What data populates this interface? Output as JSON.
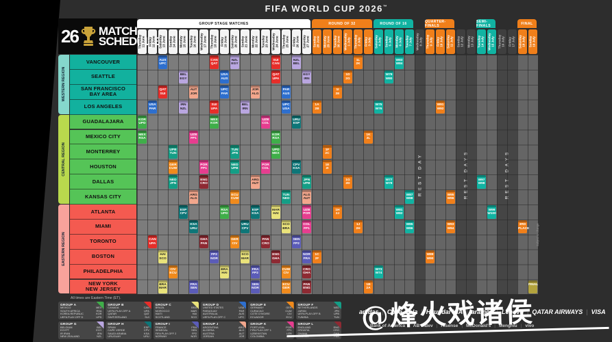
{
  "title": "FIFA WORLD CUP 2026",
  "title_tm": "™",
  "logo": {
    "year": "26",
    "line1": "MATCH",
    "line2": "SCHEDULE",
    "trophy_icon": "fifa-trophy-icon"
  },
  "note": "All times are Eastern Time (ET).",
  "side_note": "Subject to change",
  "watermark": "@烽火戏诸侯",
  "colors": {
    "accent_orange": "#f07f1a",
    "accent_teal": "#11b3a2",
    "final_gold": "#b3a33d",
    "grid_gray": "#7c7c7c",
    "knockout_gray": "#656565",
    "rest_gray": "#454545"
  },
  "regions": [
    {
      "name": "WESTERN REGION",
      "tab_color": "#85d7cc",
      "cell_color": "#12b19e",
      "cities": [
        "VANCOUVER",
        "SEATTLE",
        "SAN FRANCISCO\nBAY AREA",
        "LOS ANGELES"
      ]
    },
    {
      "name": "CENTRAL REGION",
      "tab_color": "#b9d94d",
      "cell_color": "#55c457",
      "cities": [
        "GUADALAJARA",
        "MEXICO CITY",
        "MONTERREY",
        "HOUSTON",
        "DALLAS",
        "KANSAS CITY"
      ]
    },
    {
      "name": "EASTERN REGION",
      "tab_color": "#f8a29b",
      "cell_color": "#f45a50",
      "cities": [
        "ATLANTA",
        "MIAMI",
        "TORONTO",
        "BOSTON",
        "PHILADELPHIA",
        "NEW YORK\nNEW JERSEY"
      ]
    }
  ],
  "schedule": {
    "sections": [
      {
        "label": "GROUP STAGE MATCHES",
        "type": "white",
        "start": 0,
        "end": 16
      },
      {
        "label": "ROUND OF 32",
        "type": "orange",
        "start": 17,
        "end": 22
      },
      {
        "label": "ROUND OF 16",
        "type": "teal",
        "start": 23,
        "end": 26
      },
      {
        "label": "QUARTER-FINALS",
        "type": "orange",
        "start": 28,
        "end": 30
      },
      {
        "label": "SEMI-FINALS",
        "type": "teal",
        "start": 33,
        "end": 34
      },
      {
        "label": "FINAL",
        "type": "orange",
        "start": 37,
        "end": 38
      }
    ],
    "dates": [
      {
        "w": "Thursday",
        "d": "11 June",
        "t": "g"
      },
      {
        "w": "Friday",
        "d": "12 June",
        "t": "g"
      },
      {
        "w": "Saturday",
        "d": "13 June",
        "t": "g"
      },
      {
        "w": "Sunday",
        "d": "14 June",
        "t": "g"
      },
      {
        "w": "Monday",
        "d": "15 June",
        "t": "g"
      },
      {
        "w": "Tuesday",
        "d": "16 June",
        "t": "g"
      },
      {
        "w": "Wednesday",
        "d": "17 June",
        "t": "g"
      },
      {
        "w": "Thursday",
        "d": "18 June",
        "t": "g"
      },
      {
        "w": "Friday",
        "d": "19 June",
        "t": "g"
      },
      {
        "w": "Saturday",
        "d": "20 June",
        "t": "g"
      },
      {
        "w": "Sunday",
        "d": "21 June",
        "t": "g"
      },
      {
        "w": "Monday",
        "d": "22 June",
        "t": "g"
      },
      {
        "w": "Tuesday",
        "d": "23 June",
        "t": "g"
      },
      {
        "w": "Wednesday",
        "d": "24 June",
        "t": "g"
      },
      {
        "w": "Thursday",
        "d": "25 June",
        "t": "g"
      },
      {
        "w": "Friday",
        "d": "26 June",
        "t": "g"
      },
      {
        "w": "Saturday",
        "d": "27 June",
        "t": "g"
      },
      {
        "w": "Sunday",
        "d": "28 June",
        "t": "o"
      },
      {
        "w": "Monday",
        "d": "29 June",
        "t": "o"
      },
      {
        "w": "Tuesday",
        "d": "30 June",
        "t": "o"
      },
      {
        "w": "Wednesday",
        "d": "1 July",
        "t": "o"
      },
      {
        "w": "Thursday",
        "d": "2 July",
        "t": "o"
      },
      {
        "w": "Friday",
        "d": "3 July",
        "t": "o"
      },
      {
        "w": "Saturday",
        "d": "4 July",
        "t": "t"
      },
      {
        "w": "Sunday",
        "d": "5 July",
        "t": "t"
      },
      {
        "w": "Monday",
        "d": "6 July",
        "t": "t"
      },
      {
        "w": "Tuesday",
        "d": "7 July",
        "t": "t"
      },
      {
        "w": "Wednesday",
        "d": "8 July",
        "t": "r"
      },
      {
        "w": "Thursday",
        "d": "9 July",
        "t": "o"
      },
      {
        "w": "Friday",
        "d": "10 July",
        "t": "o"
      },
      {
        "w": "Saturday",
        "d": "11 July",
        "t": "o"
      },
      {
        "w": "Sunday",
        "d": "12 July",
        "t": "r"
      },
      {
        "w": "Monday",
        "d": "13 July",
        "t": "r"
      },
      {
        "w": "Tuesday",
        "d": "14 July",
        "t": "t"
      },
      {
        "w": "Wednesday",
        "d": "15 July",
        "t": "t"
      },
      {
        "w": "Thursday",
        "d": "16 July",
        "t": "r"
      },
      {
        "w": "Friday",
        "d": "17 July",
        "t": "r"
      },
      {
        "w": "Saturday",
        "d": "18 July",
        "t": "o"
      },
      {
        "w": "Sunday",
        "d": "19 July",
        "t": "o"
      }
    ],
    "rest_columns": [
      {
        "col": 27,
        "span": 1,
        "label": "REST DAY"
      },
      {
        "col": 31,
        "span": 2,
        "label": "REST DAYS"
      },
      {
        "col": 35,
        "span": 2,
        "label": "REST DAYS"
      }
    ]
  },
  "group_colors": {
    "A": "#3fae49",
    "B": "#e62e2a",
    "C": "#e9e27a",
    "D": "#2e6fce",
    "E": "#f08a1c",
    "F": "#149e86",
    "G": "#b9a6e0",
    "H": "#0e7678",
    "I": "#5b5cb8",
    "J": "#f2a68c",
    "K": "#e63d8f",
    "L": "#8e2a33"
  },
  "dark_text_groups": [
    "C",
    "G",
    "J"
  ],
  "stage_colors": {
    "r32": "#f07f1a",
    "r16": "#11b3a2",
    "qf": "#f07f1a",
    "sf": "#11b3a2",
    "bronze": "#f07f1a",
    "final": "#b3a33d"
  },
  "matches": [
    [
      0,
      2,
      "D",
      "AUS",
      "UPC"
    ],
    [
      0,
      7,
      "B",
      "CAN",
      "QAT"
    ],
    [
      0,
      9,
      "G",
      "NZL",
      "EGY"
    ],
    [
      0,
      13,
      "B",
      "SUI",
      "CAN"
    ],
    [
      0,
      15,
      "G",
      "NZL",
      "BEL"
    ],
    [
      1,
      4,
      "G",
      "BEL",
      "EGY"
    ],
    [
      1,
      8,
      "D",
      "USA",
      "AUS"
    ],
    [
      1,
      13,
      "B",
      "QAT",
      "UPA"
    ],
    [
      1,
      16,
      "G",
      "EGY",
      "IRN"
    ],
    [
      2,
      2,
      "B",
      "QAT",
      "SUI"
    ],
    [
      2,
      5,
      "J",
      "AUT",
      "JOR"
    ],
    [
      2,
      8,
      "D",
      "UPC",
      "PAR"
    ],
    [
      2,
      11,
      "J",
      "JOR",
      "ALG"
    ],
    [
      2,
      14,
      "D",
      "PAR",
      "AUS"
    ],
    [
      3,
      1,
      "D",
      "USA",
      "PAR"
    ],
    [
      3,
      4,
      "G",
      "IRN",
      "NZL"
    ],
    [
      3,
      7,
      "B",
      "SUI",
      "UPA"
    ],
    [
      3,
      10,
      "G",
      "BEL",
      "IRN"
    ],
    [
      3,
      14,
      "D",
      "UPC",
      "USA"
    ],
    [
      4,
      0,
      "A",
      "KOR",
      "UPD"
    ],
    [
      4,
      7,
      "A",
      "MEX",
      "KOR"
    ],
    [
      4,
      12,
      "K",
      "UZB",
      "COL"
    ],
    [
      4,
      15,
      "H",
      "URU",
      "ESP"
    ],
    [
      5,
      0,
      "A",
      "MEX",
      "RSA"
    ],
    [
      5,
      5,
      "K",
      "UZB",
      "FP1"
    ],
    [
      5,
      13,
      "A",
      "KOR",
      "RSA"
    ],
    [
      6,
      3,
      "F",
      "UPB",
      "TUN"
    ],
    [
      6,
      9,
      "F",
      "TUN",
      "JPN"
    ],
    [
      6,
      13,
      "A",
      "UPD",
      "MEX"
    ],
    [
      7,
      3,
      "E",
      "GER",
      "CUW"
    ],
    [
      7,
      6,
      "K",
      "POR",
      "FP1"
    ],
    [
      7,
      9,
      "F",
      "NED",
      "UPB"
    ],
    [
      7,
      12,
      "K",
      "POR",
      "COL"
    ],
    [
      7,
      15,
      "H",
      "CPV",
      "KSA"
    ],
    [
      8,
      3,
      "F",
      "NED",
      "JPN"
    ],
    [
      8,
      6,
      "L",
      "ENG",
      "CRO"
    ],
    [
      8,
      11,
      "J",
      "ARG",
      "AUT"
    ],
    [
      8,
      16,
      "F",
      "JPN",
      "UPB"
    ],
    [
      9,
      5,
      "J",
      "ARG",
      "ALG"
    ],
    [
      9,
      9,
      "E",
      "ECU",
      "CUW"
    ],
    [
      9,
      14,
      "F",
      "TUN",
      "NED"
    ],
    [
      9,
      16,
      "J",
      "ALG",
      "AUT"
    ],
    [
      10,
      4,
      "H",
      "ESP",
      "CPV"
    ],
    [
      10,
      8,
      "A",
      "RSA",
      "UPD"
    ],
    [
      10,
      11,
      "H",
      "ESP",
      "KSA"
    ],
    [
      10,
      13,
      "C",
      "MAR",
      "HAI"
    ],
    [
      10,
      16,
      "K",
      "UZB",
      "POR"
    ],
    [
      11,
      5,
      "H",
      "KSA",
      "URU"
    ],
    [
      11,
      10,
      "H",
      "URU",
      "CPV"
    ],
    [
      11,
      14,
      "C",
      "SCO",
      "BRA"
    ],
    [
      11,
      16,
      "K",
      "COL",
      "FP1"
    ],
    [
      12,
      1,
      "B",
      "CAN",
      "UPA"
    ],
    [
      12,
      6,
      "L",
      "GHA",
      "PAN"
    ],
    [
      12,
      9,
      "E",
      "GER",
      "CIV"
    ],
    [
      12,
      12,
      "L",
      "PAN",
      "CRO"
    ],
    [
      12,
      15,
      "I",
      "SEN",
      "FP2"
    ],
    [
      13,
      2,
      "C",
      "HAI",
      "SCO"
    ],
    [
      13,
      7,
      "I",
      "FP2",
      "NOR"
    ],
    [
      13,
      10,
      "C",
      "SCO",
      "MAR"
    ],
    [
      13,
      13,
      "L",
      "ENG",
      "GHA"
    ],
    [
      13,
      16,
      "I",
      "NOR",
      "FRA"
    ],
    [
      14,
      3,
      "E",
      "CIV",
      "ECU"
    ],
    [
      14,
      8,
      "C",
      "BRA",
      "HAI"
    ],
    [
      14,
      11,
      "I",
      "FRA",
      "FP2"
    ],
    [
      14,
      14,
      "E",
      "CUW",
      "CIV"
    ],
    [
      14,
      16,
      "L",
      "CRO",
      "GHA"
    ],
    [
      15,
      2,
      "C",
      "BRA",
      "MAR"
    ],
    [
      15,
      5,
      "I",
      "FRA",
      "SEN"
    ],
    [
      15,
      11,
      "I",
      "SEN",
      "NOR"
    ],
    [
      15,
      14,
      "E",
      "ECU",
      "GER"
    ],
    [
      15,
      16,
      "L",
      "PAN",
      "ENG"
    ]
  ],
  "knockout_matches": [
    [
      3,
      17,
      "r32",
      "1A",
      "2B"
    ],
    [
      13,
      17,
      "r32",
      "1C",
      "2F"
    ],
    [
      7,
      18,
      "r32",
      "1E",
      "2I"
    ],
    [
      6,
      18,
      "r32",
      "1F",
      "2C"
    ],
    [
      2,
      19,
      "r32",
      "1I",
      "2E"
    ],
    [
      10,
      19,
      "r32",
      "1H",
      "2J"
    ],
    [
      1,
      20,
      "r32",
      "1D",
      "2G"
    ],
    [
      8,
      20,
      "r32",
      "1G",
      "2D"
    ],
    [
      0,
      21,
      "r32",
      "1L",
      "2K"
    ],
    [
      11,
      21,
      "r32",
      "1J",
      "2H"
    ],
    [
      5,
      22,
      "r32",
      "1K",
      "2L"
    ],
    [
      15,
      22,
      "r32",
      "1B",
      "2A"
    ],
    [
      14,
      23,
      "r16",
      "W73",
      "W74"
    ],
    [
      3,
      23,
      "r16",
      "W75",
      "W76"
    ],
    [
      8,
      24,
      "r16",
      "W77",
      "W78"
    ],
    [
      1,
      24,
      "r16",
      "W79",
      "W80"
    ],
    [
      10,
      25,
      "r16",
      "W81",
      "W82"
    ],
    [
      0,
      25,
      "r16",
      "W83",
      "W84"
    ],
    [
      11,
      26,
      "r16",
      "W85",
      "W86"
    ],
    [
      9,
      26,
      "r16",
      "W87",
      "W88"
    ],
    [
      13,
      28,
      "qf",
      "W89",
      "W90"
    ],
    [
      3,
      29,
      "qf",
      "W91",
      "W92"
    ],
    [
      11,
      30,
      "qf",
      "W93",
      "W94"
    ],
    [
      9,
      30,
      "qf",
      "W95",
      "W96"
    ],
    [
      8,
      33,
      "sf",
      "W97",
      "W98"
    ],
    [
      10,
      34,
      "sf",
      "W99",
      "W100"
    ],
    [
      11,
      37,
      "bronze",
      "3RD",
      "PLACE"
    ],
    [
      15,
      38,
      "final",
      "FINAL",
      ""
    ]
  ],
  "legend": [
    {
      "id": "GROUP A",
      "g": "A",
      "teams": [
        [
          "MEXICO",
          "MEX"
        ],
        [
          "SOUTH AFRICA",
          "RSA"
        ],
        [
          "KOREA REPUBLIC",
          "KOR"
        ],
        [
          "UEFA PLAY-OFF D",
          "UPD"
        ]
      ]
    },
    {
      "id": "GROUP B",
      "g": "B",
      "teams": [
        [
          "CANADA",
          "CAN"
        ],
        [
          "UEFA PLAY-OFF A",
          "UPA"
        ],
        [
          "QATAR",
          "QAT"
        ],
        [
          "SWITZERLAND",
          "SUI"
        ]
      ]
    },
    {
      "id": "GROUP C",
      "g": "C",
      "teams": [
        [
          "BRAZIL",
          "BRA"
        ],
        [
          "MOROCCO",
          "MAR"
        ],
        [
          "HAITI",
          "HAI"
        ],
        [
          "SCOTLAND",
          "SCO"
        ]
      ]
    },
    {
      "id": "GROUP D",
      "g": "D",
      "teams": [
        [
          "UNITED STATES",
          "USA"
        ],
        [
          "PARAGUAY",
          "PAR"
        ],
        [
          "AUSTRALIA",
          "AUS"
        ],
        [
          "UEFA PLAY-OFF C",
          "UPC"
        ]
      ]
    },
    {
      "id": "GROUP E",
      "g": "E",
      "teams": [
        [
          "GERMANY",
          "GER"
        ],
        [
          "CURACAO",
          "CUW"
        ],
        [
          "COTE D'IVOIRE",
          "CIV"
        ],
        [
          "ECUADOR",
          "ECU"
        ]
      ]
    },
    {
      "id": "GROUP F",
      "g": "F",
      "teams": [
        [
          "NETHERLANDS",
          "NED"
        ],
        [
          "JAPAN",
          "JPN"
        ],
        [
          "UEFA PLAY-OFF B",
          "UPB"
        ],
        [
          "TUNISIA",
          "TUN"
        ]
      ]
    },
    {
      "id": "GROUP G",
      "g": "G",
      "teams": [
        [
          "BELGIUM",
          "BEL"
        ],
        [
          "EGYPT",
          "EGY"
        ],
        [
          "IR IRAN",
          "IRN"
        ],
        [
          "NEW ZEALAND",
          "NZL"
        ]
      ]
    },
    {
      "id": "GROUP H",
      "g": "H",
      "teams": [
        [
          "SPAIN",
          "ESP"
        ],
        [
          "CAPE VERDE",
          "CPV"
        ],
        [
          "SAUDI ARABIA",
          "KSA"
        ],
        [
          "URUGUAY",
          "URU"
        ]
      ]
    },
    {
      "id": "GROUP I",
      "g": "I",
      "teams": [
        [
          "FRANCE",
          "FRA"
        ],
        [
          "SENEGAL",
          "SEN"
        ],
        [
          "FIFA PLAY-OFF 2",
          "FP2"
        ],
        [
          "NORWAY",
          "NOR"
        ]
      ]
    },
    {
      "id": "GROUP J",
      "g": "J",
      "teams": [
        [
          "ARGENTINA",
          "ARG"
        ],
        [
          "ALGERIA",
          "ALG"
        ],
        [
          "AUSTRIA",
          "AUT"
        ],
        [
          "JORDAN",
          "JOR"
        ]
      ]
    },
    {
      "id": "GROUP K",
      "g": "K",
      "teams": [
        [
          "PORTUGAL",
          "POR"
        ],
        [
          "FIFA PLAY-OFF 1",
          "FP1"
        ],
        [
          "UZBEKISTAN",
          "UZB"
        ],
        [
          "COLOMBIA",
          "COL"
        ]
      ]
    },
    {
      "id": "GROUP L",
      "g": "L",
      "teams": [
        [
          "ENGLAND",
          "ENG"
        ],
        [
          "CROATIA",
          "CRO"
        ],
        [
          "GHANA",
          "GHA"
        ],
        [
          "PANAMA",
          "PAN"
        ]
      ]
    }
  ],
  "sponsors": {
    "row1": [
      "adidas",
      "Coca-Cola",
      "Hyundai KIA",
      "aramco",
      "Lenovo",
      "QATAR AIRWAYS",
      "VISA"
    ],
    "row2": [
      "Bank of America",
      "AB InBev",
      "Hisense",
      "McDonald's",
      "Mengniu",
      "vivo"
    ]
  }
}
